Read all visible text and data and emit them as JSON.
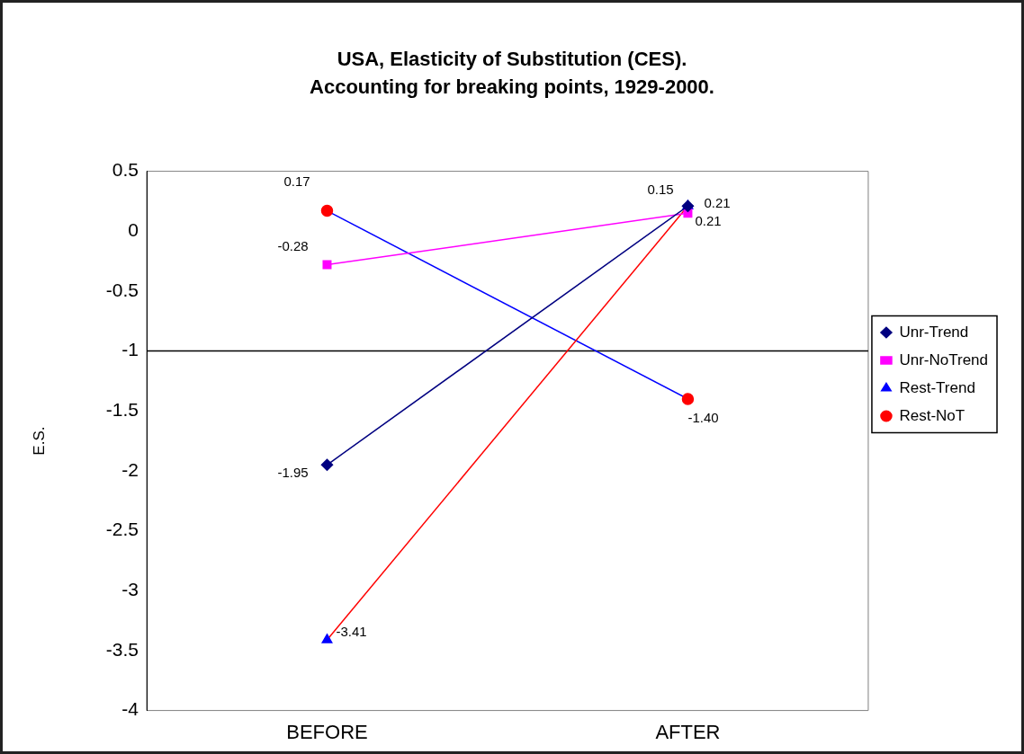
{
  "chart_data": {
    "type": "line",
    "title": "USA, Elasticity of Substitution (CES).\nAccounting for breaking points, 1929-2000.",
    "ylabel": "E.S.",
    "categories": [
      "BEFORE",
      "AFTER"
    ],
    "series": [
      {
        "name": "Unr-Trend",
        "color": "#000080",
        "colors": [
          "#000080",
          "#000080"
        ],
        "marker": "diamond",
        "values": [
          -1.95,
          0.21
        ],
        "value_labels": [
          "-1.95",
          "0.21"
        ]
      },
      {
        "name": "Unr-NoTrend",
        "color": "#ff00ff",
        "colors": [
          "#ff00ff",
          "#ff00ff"
        ],
        "marker": "square",
        "values": [
          -0.28,
          0.15
        ],
        "value_labels": [
          "-0.28",
          "0.15"
        ]
      },
      {
        "name": "Rest-Trend",
        "color": "#ff0000",
        "colors": [
          "#0000ff",
          "#0000ff"
        ],
        "marker": "triangle",
        "values": [
          -3.41,
          0.21
        ],
        "value_labels": [
          "-3.41",
          "0.21"
        ]
      },
      {
        "name": "Rest-NoT",
        "color": "#0000ff",
        "colors": [
          "#ff0000",
          "#ff0000"
        ],
        "marker": "circle",
        "values": [
          0.17,
          -1.4
        ],
        "value_labels": [
          "0.17",
          "-1.40"
        ]
      }
    ],
    "ylim": [
      -4,
      0.5
    ],
    "yticks": [
      -4,
      -3.5,
      -3,
      -2.5,
      -2,
      -1.5,
      -1,
      -0.5,
      0,
      0.5
    ],
    "ref_lines": [
      {
        "axis": "y",
        "value": -1
      }
    ],
    "grid": false,
    "legend": "right",
    "line_style": "solid"
  }
}
